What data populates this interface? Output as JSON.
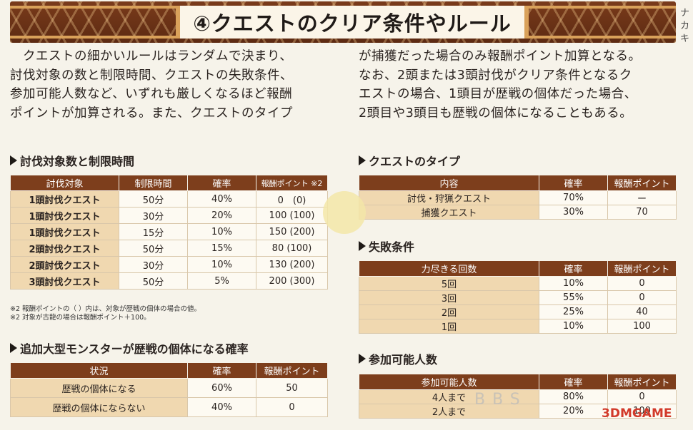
{
  "title": "④クエストのクリア条件やルール",
  "side_text": "ナ カ キ",
  "paragraph_left": [
    "　クエストの細かいルールはランダムで決まり、",
    "討伐対象の数と制限時間、クエストの失敗条件、",
    "参加可能人数など、いずれも厳しくなるほど報酬",
    "ポイントが加算される。また、クエストのタイプ"
  ],
  "paragraph_right": [
    "が捕獲だった場合のみ報酬ポイント加算となる。",
    "なお、2頭または3頭討伐がクリア条件となるク",
    "エストの場合、1頭目が歴戦の個体だった場合、",
    "2頭目や3頭目も歴戦の個体になることもある。"
  ],
  "table1": {
    "heading": "討伐対象数と制限時間",
    "headers": [
      "討伐対象",
      "制限時間",
      "確率",
      "報酬ポイント ※2"
    ],
    "rows": [
      [
        "1頭討伐クエスト",
        "50分",
        "40%",
        "0　(0)"
      ],
      [
        "1頭討伐クエスト",
        "30分",
        "20%",
        "100 (100)"
      ],
      [
        "1頭討伐クエスト",
        "15分",
        "10%",
        "150 (200)"
      ],
      [
        "2頭討伐クエスト",
        "50分",
        "15%",
        "80 (100)"
      ],
      [
        "2頭討伐クエスト",
        "30分",
        "10%",
        "130 (200)"
      ],
      [
        "3頭討伐クエスト",
        "50分",
        "5%",
        "200 (300)"
      ]
    ],
    "notes": [
      "※2 報酬ポイントの（ ）内は、対象が歴戦の個体の場合の値。",
      "※2 対象が古龍の場合は報酬ポイント＋100。"
    ]
  },
  "table2": {
    "heading": "追加大型モンスターが歴戦の個体になる確率",
    "headers": [
      "状況",
      "確率",
      "報酬ポイント"
    ],
    "rows": [
      [
        "歴戦の個体になる",
        "60%",
        "50"
      ],
      [
        "歴戦の個体にならない",
        "40%",
        "0"
      ]
    ]
  },
  "table3": {
    "heading": "クエストのタイプ",
    "headers": [
      "内容",
      "確率",
      "報酬ポイント"
    ],
    "rows": [
      [
        "討伐・狩猟クエスト",
        "70%",
        "ー"
      ],
      [
        "捕獲クエスト",
        "30%",
        "70"
      ]
    ]
  },
  "table4": {
    "heading": "失敗条件",
    "headers": [
      "力尽きる回数",
      "確率",
      "報酬ポイント"
    ],
    "rows": [
      [
        "5回",
        "10%",
        "0"
      ],
      [
        "3回",
        "55%",
        "0"
      ],
      [
        "2回",
        "25%",
        "40"
      ],
      [
        "1回",
        "10%",
        "100"
      ]
    ]
  },
  "table5": {
    "heading": "参加可能人数",
    "headers": [
      "参加可能人数",
      "確率",
      "報酬ポイント"
    ],
    "rows": [
      [
        "4人まで",
        "80%",
        "0"
      ],
      [
        "2人まで",
        "20%",
        "100"
      ]
    ]
  },
  "watermark": "3DMGAME",
  "bbs_mark": "BBS"
}
